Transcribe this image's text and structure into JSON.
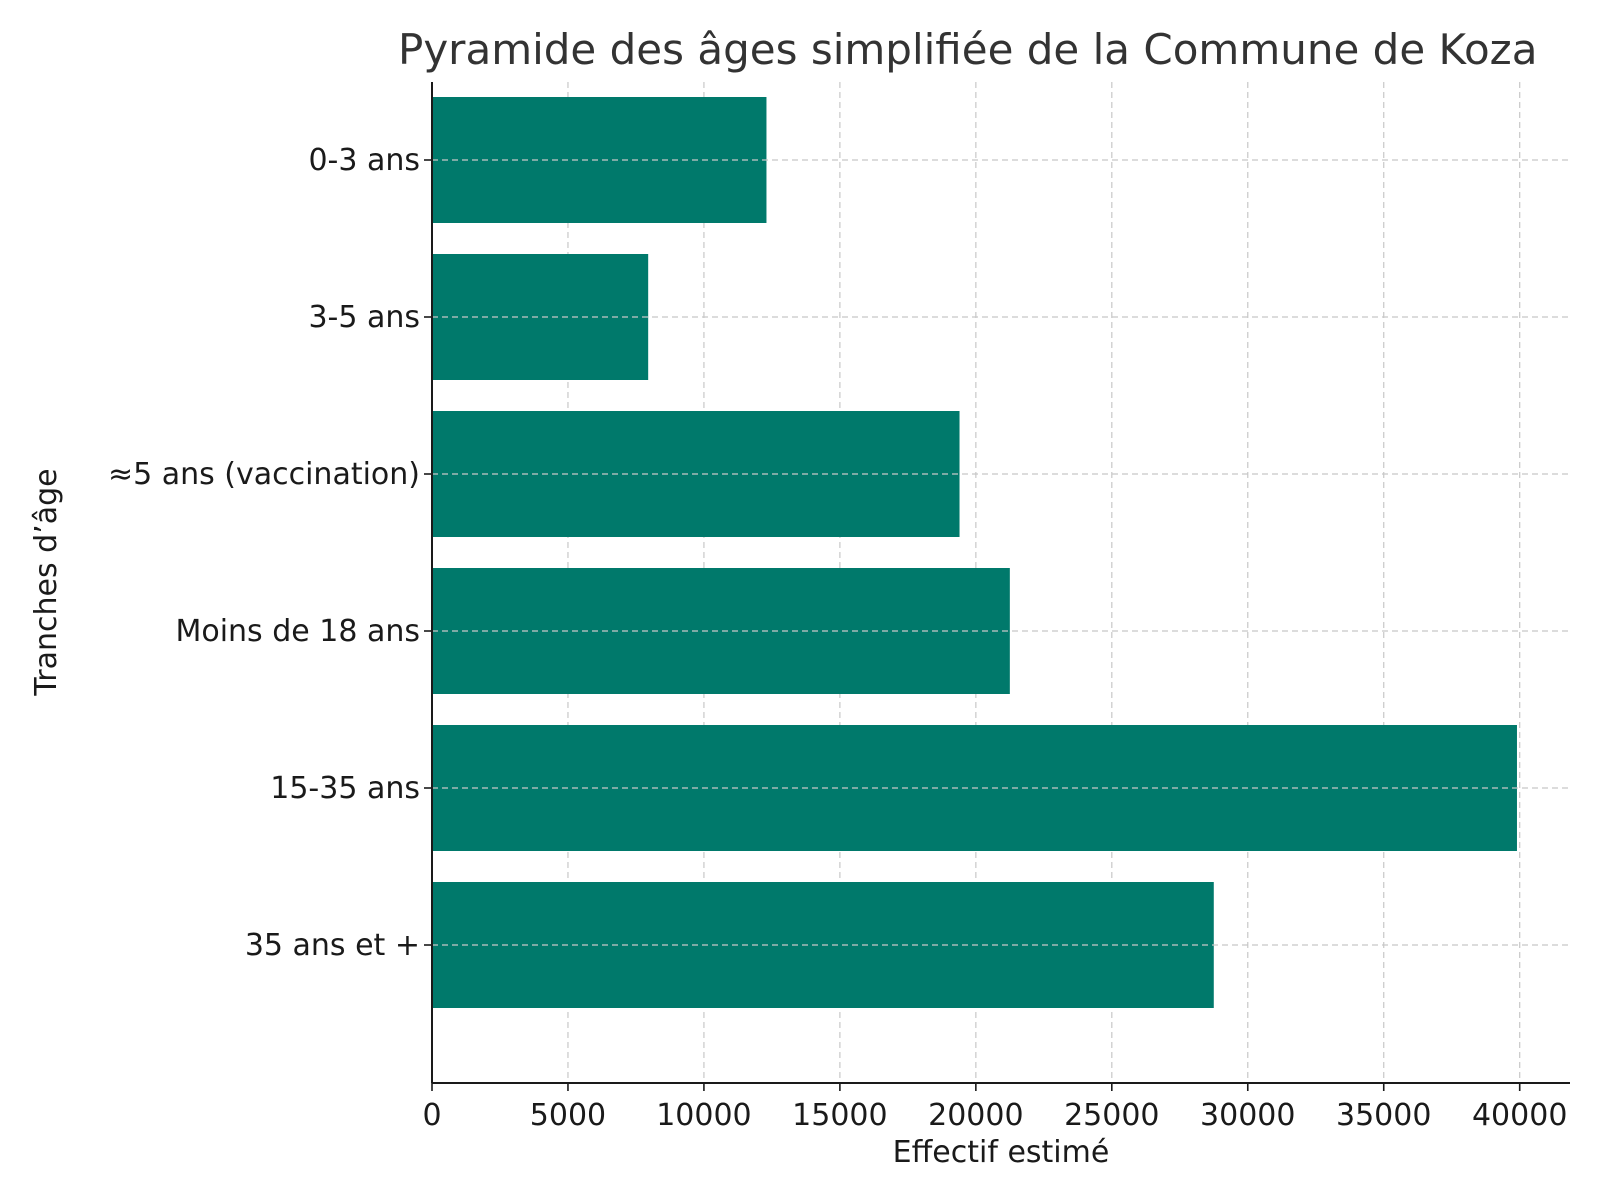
{
  "chart_data": {
    "type": "bar",
    "orientation": "horizontal",
    "title": "Pyramide des âges simplifiée de la Commune de Koza",
    "xlabel": "Effectif estimé",
    "ylabel": "Tranches d’âge",
    "categories": [
      "0-3 ans",
      "3-5 ans",
      "≈5 ans (vaccination)",
      "Moins de 18 ans",
      "15-35 ans",
      "35 ans et +"
    ],
    "values": [
      12300,
      7950,
      19400,
      21250,
      39900,
      28750
    ],
    "xlim": [
      0,
      41850
    ],
    "xticks": [
      0,
      5000,
      10000,
      15000,
      20000,
      25000,
      30000,
      35000,
      40000
    ],
    "xtick_labels": [
      "0",
      "5000",
      "10000",
      "15000",
      "20000",
      "25000",
      "30000",
      "35000",
      "40000"
    ],
    "grid": true,
    "grid_style": "dashed",
    "bar_color": "#00796b"
  }
}
